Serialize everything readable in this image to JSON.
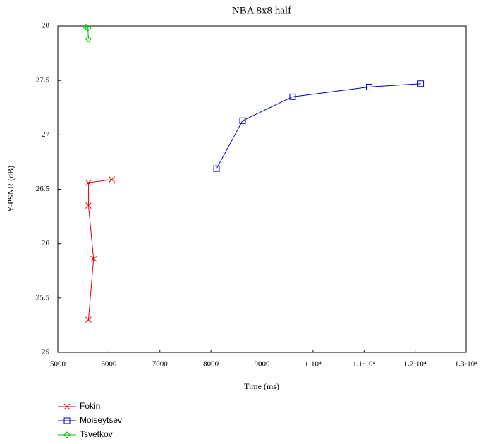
{
  "chart_data": {
    "type": "line",
    "title": "NBA 8x8 half",
    "x_label": "Time (ms)",
    "y_label": "Y-PSNR (dB)",
    "xlim": [
      5000,
      13000
    ],
    "xticks": [
      5000,
      6000,
      7000,
      8000,
      9000,
      {
        "value": 10000,
        "label": "1·10⁴"
      },
      {
        "value": 11000,
        "label": "1.1·10⁴"
      },
      {
        "value": 12000,
        "label": "1.2·10⁴"
      },
      {
        "value": 13000,
        "label": "1.3·10⁴"
      }
    ],
    "ylim": [
      25,
      28
    ],
    "yticks": [
      25,
      25.5,
      26,
      26.5,
      27,
      27.5,
      28
    ],
    "series": [
      {
        "name": "Fokin",
        "color": "#e00000",
        "marker": "x",
        "x": [
          6060,
          5600,
          5600,
          5700,
          5600
        ],
        "values": [
          26.59,
          26.56,
          26.35,
          25.86,
          25.3
        ]
      },
      {
        "name": "Moiseytsev",
        "color": "#0000c0",
        "marker": "square",
        "x": [
          8110,
          8620,
          9600,
          11100,
          12110
        ],
        "values": [
          26.69,
          27.13,
          27.35,
          27.44,
          27.47
        ]
      },
      {
        "name": "Tsvetkov",
        "color": "#00c000",
        "marker": "diamond",
        "x": [
          5550,
          5590,
          5600
        ],
        "values": [
          27.99,
          27.98,
          27.88
        ]
      }
    ]
  }
}
